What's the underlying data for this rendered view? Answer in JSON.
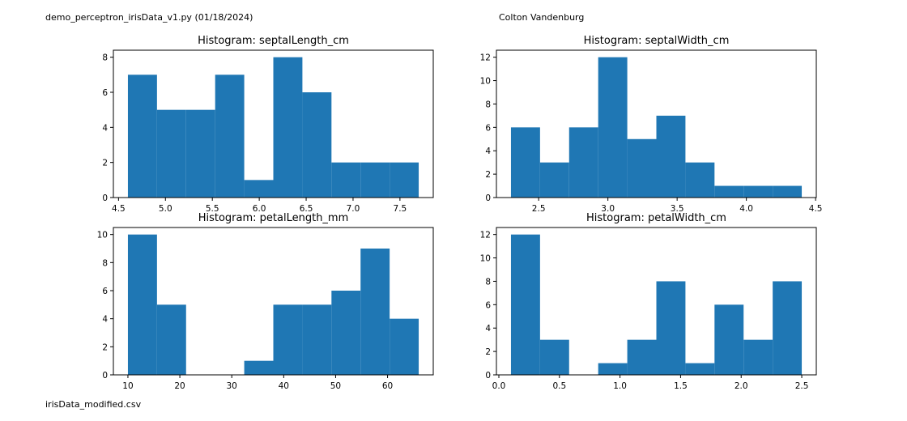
{
  "header": {
    "left_text": "demo_perceptron_irisData_v1.py (01/18/2024)",
    "right_text": "Colton Vandenburg"
  },
  "footer": {
    "left_text": "irisData_modified.csv"
  },
  "colors": {
    "bar": "#1f77b4",
    "axis": "#000000"
  },
  "chart_data": [
    {
      "type": "bar",
      "title": "Histogram: septalLength_cm",
      "xlabel": "",
      "ylabel": "",
      "bin_edges": [
        4.6,
        4.91,
        5.22,
        5.53,
        5.84,
        6.15,
        6.46,
        6.77,
        7.08,
        7.39,
        7.7
      ],
      "values": [
        7,
        5,
        5,
        7,
        1,
        8,
        6,
        2,
        2,
        2
      ],
      "xlim": [
        4.445,
        7.855
      ],
      "ylim": [
        0,
        8.4
      ],
      "xticks": [
        4.5,
        5.0,
        5.5,
        6.0,
        6.5,
        7.0,
        7.5
      ],
      "xtick_labels": [
        "4.5",
        "5.0",
        "5.5",
        "6.0",
        "6.5",
        "7.0",
        "7.5"
      ],
      "yticks": [
        0,
        2,
        4,
        6,
        8
      ],
      "ytick_labels": [
        "0",
        "2",
        "4",
        "6",
        "8"
      ]
    },
    {
      "type": "bar",
      "title": "Histogram: septalWidth_cm",
      "xlabel": "",
      "ylabel": "",
      "bin_edges": [
        2.3,
        2.51,
        2.72,
        2.93,
        3.14,
        3.35,
        3.56,
        3.77,
        3.98,
        4.19,
        4.4
      ],
      "values": [
        6,
        3,
        6,
        12,
        5,
        7,
        3,
        1,
        1,
        1
      ],
      "xlim": [
        2.195,
        4.505
      ],
      "ylim": [
        0,
        12.6
      ],
      "xticks": [
        2.5,
        3.0,
        3.5,
        4.0,
        4.5
      ],
      "xtick_labels": [
        "2.5",
        "3.0",
        "3.5",
        "4.0",
        "4.5"
      ],
      "yticks": [
        0,
        2,
        4,
        6,
        8,
        10,
        12
      ],
      "ytick_labels": [
        "0",
        "2",
        "4",
        "6",
        "8",
        "10",
        "12"
      ]
    },
    {
      "type": "bar",
      "title": "Histogram: petalLength_mm",
      "xlabel": "",
      "ylabel": "",
      "bin_edges": [
        10,
        15.6,
        21.2,
        26.8,
        32.4,
        38,
        43.6,
        49.2,
        54.8,
        60.4,
        66
      ],
      "values": [
        10,
        5,
        0,
        0,
        1,
        5,
        5,
        6,
        9,
        4
      ],
      "xlim": [
        7.2,
        68.8
      ],
      "ylim": [
        0,
        10.5
      ],
      "xticks": [
        10,
        20,
        30,
        40,
        50,
        60
      ],
      "xtick_labels": [
        "10",
        "20",
        "30",
        "40",
        "50",
        "60"
      ],
      "yticks": [
        0,
        2,
        4,
        6,
        8,
        10
      ],
      "ytick_labels": [
        "0",
        "2",
        "4",
        "6",
        "8",
        "10"
      ]
    },
    {
      "type": "bar",
      "title": "Histogram: petalWidth_cm",
      "xlabel": "",
      "ylabel": "",
      "bin_edges": [
        0.1,
        0.34,
        0.58,
        0.82,
        1.06,
        1.3,
        1.54,
        1.78,
        2.02,
        2.26,
        2.5
      ],
      "values": [
        12,
        3,
        0,
        1,
        3,
        8,
        1,
        6,
        3,
        8
      ],
      "xlim": [
        -0.02,
        2.62
      ],
      "ylim": [
        0,
        12.6
      ],
      "xticks": [
        0.0,
        0.5,
        1.0,
        1.5,
        2.0,
        2.5
      ],
      "xtick_labels": [
        "0.0",
        "0.5",
        "1.0",
        "1.5",
        "2.0",
        "2.5"
      ],
      "yticks": [
        0,
        2,
        4,
        6,
        8,
        10,
        12
      ],
      "ytick_labels": [
        "0",
        "2",
        "4",
        "6",
        "8",
        "10",
        "12"
      ]
    }
  ]
}
